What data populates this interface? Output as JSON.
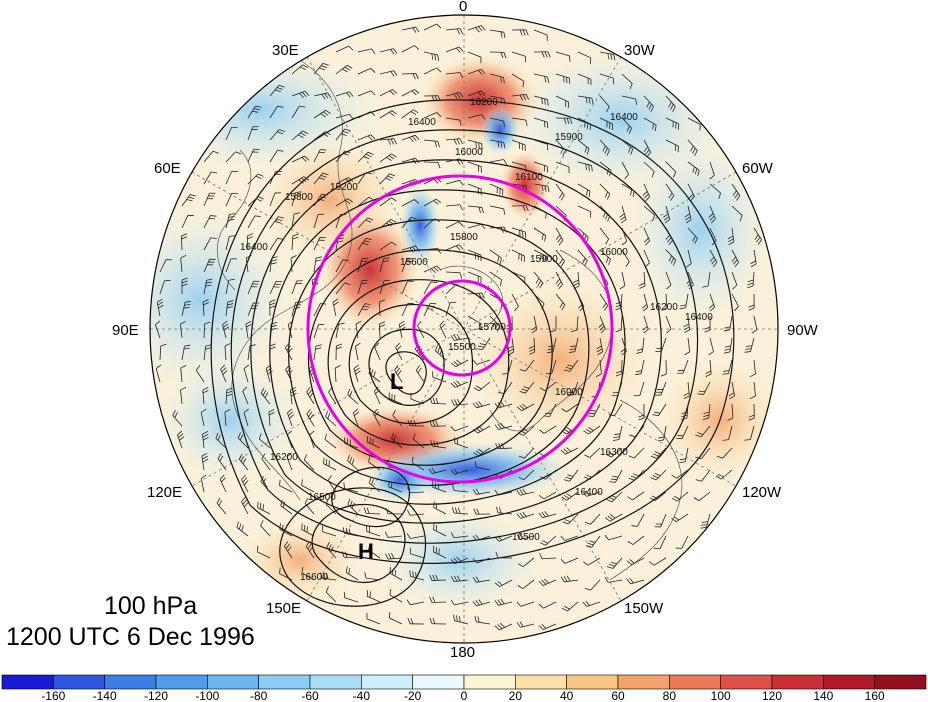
{
  "title": {
    "level": "100 hPa",
    "time": "1200 UTC 6 Dec 1996"
  },
  "map": {
    "projection": "north-polar-stereographic",
    "longitude_labels": [
      {
        "text": "0",
        "lon": 0
      },
      {
        "text": "30W",
        "lon": -30
      },
      {
        "text": "60W",
        "lon": -60
      },
      {
        "text": "90W",
        "lon": -90
      },
      {
        "text": "120W",
        "lon": -120
      },
      {
        "text": "150W",
        "lon": -150
      },
      {
        "text": "180",
        "lon": 180
      },
      {
        "text": "150E",
        "lon": 150
      },
      {
        "text": "120E",
        "lon": 120
      },
      {
        "text": "90E",
        "lon": 90
      },
      {
        "text": "60E",
        "lon": 60
      },
      {
        "text": "30E",
        "lon": 30
      }
    ],
    "contour_labels": [
      "16400",
      "16200",
      "16000",
      "15900",
      "16100",
      "16400",
      "16200",
      "15800",
      "16400",
      "15600",
      "15800",
      "15900",
      "16000",
      "16200",
      "15500",
      "15700",
      "16000",
      "16200",
      "16300",
      "16400",
      "16500",
      "16500",
      "16600",
      "16400"
    ],
    "pressure_systems": [
      {
        "label": "L",
        "type": "low"
      },
      {
        "label": "H",
        "type": "high"
      }
    ],
    "reference_circle_color": "#e600e6"
  },
  "colorbar": {
    "ticks": [
      "-160",
      "-140",
      "-120",
      "-100",
      "-80",
      "-60",
      "-40",
      "-20",
      "0",
      "20",
      "40",
      "60",
      "80",
      "100",
      "120",
      "140",
      "160"
    ],
    "colors": [
      "#1a1ad6",
      "#2b56e0",
      "#3b7ee6",
      "#4f9ceb",
      "#6eb6f0",
      "#8ccbf3",
      "#abddf7",
      "#cdeefb",
      "#e8f8fc",
      "#fdf4d6",
      "#fbe1a8",
      "#f8c585",
      "#f3a36b",
      "#ec7a57",
      "#e0504a",
      "#cc2f36",
      "#b3182a",
      "#930f20"
    ]
  }
}
